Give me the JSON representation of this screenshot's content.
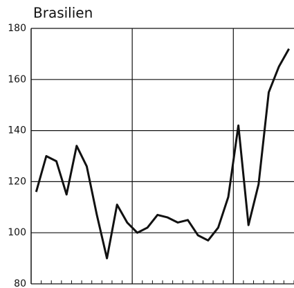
{
  "chart_data": {
    "type": "line",
    "title": "Brasilien",
    "categories": [
      null,
      null,
      null,
      null,
      null,
      null,
      null,
      null,
      null,
      null,
      null,
      null,
      null,
      null,
      null,
      null,
      null,
      null,
      null,
      null,
      null,
      null,
      null,
      null,
      null,
      null
    ],
    "series": [
      {
        "color": "#111111",
        "values": [
          116,
          130,
          128,
          115,
          134,
          126,
          107,
          90,
          111,
          104,
          100,
          102,
          107,
          106,
          104,
          105,
          99,
          97,
          102,
          114,
          142,
          103,
          119,
          155,
          165,
          172
        ]
      }
    ],
    "ylim": [
      80,
      180
    ],
    "yticks": [
      80,
      100,
      120,
      140,
      160,
      180
    ],
    "grid": true
  }
}
